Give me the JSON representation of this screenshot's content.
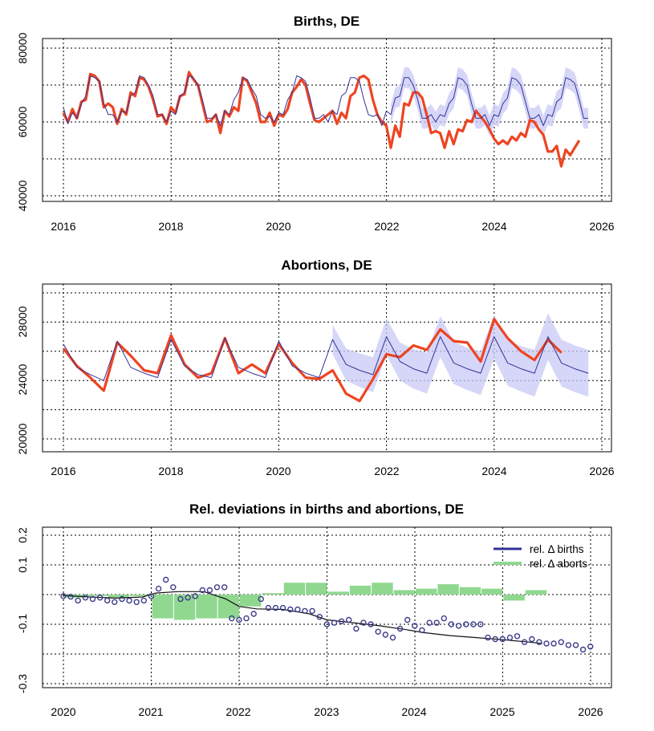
{
  "colors": {
    "observed": "#ee4422",
    "expected": "#333399",
    "band": "#c8c8f5",
    "bars": "#90d890",
    "points": "#3c3c8c",
    "trend": "#111111"
  },
  "chart_data": [
    {
      "type": "line",
      "title": "Births, DE",
      "xlim": [
        2016,
        2026
      ],
      "ylim": [
        40000,
        80000
      ],
      "x_ticks": [
        "2016",
        "2018",
        "2020",
        "2022",
        "2024",
        "2026"
      ],
      "y_ticks": [
        "40000",
        "60000",
        "80000"
      ],
      "grid": true,
      "series": [
        {
          "role": "observed",
          "x_start": 2016.0,
          "x_step": 0.0833,
          "values": [
            62500,
            60000,
            63500,
            61000,
            65500,
            66000,
            73000,
            72500,
            71000,
            64000,
            65000,
            64000,
            59500,
            63500,
            62000,
            68000,
            67000,
            72000,
            71500,
            69500,
            66000,
            61500,
            62000,
            59500,
            64000,
            62500,
            67000,
            67500,
            73500,
            71500,
            70000,
            65000,
            60000,
            60500,
            62000,
            57000,
            63000,
            61500,
            64000,
            63000,
            72000,
            71000,
            68000,
            65000,
            60000,
            60000,
            62500,
            59000,
            62000,
            61500,
            63500,
            68000,
            69500,
            71500,
            70000,
            65000,
            60500,
            60000,
            61000,
            62000,
            63000,
            59500,
            62500,
            61000,
            67000,
            68000,
            72000,
            72500,
            71500,
            66000,
            62000,
            60000,
            59000,
            53000,
            59000,
            56000,
            65000,
            64500,
            68000,
            68000,
            66500,
            62000,
            57000,
            57500,
            57000,
            53000,
            57500,
            54000,
            58000,
            57500,
            60500,
            60000,
            63000,
            61500,
            60000,
            58000,
            55500,
            54000,
            55000,
            54000,
            56000,
            55000,
            57000,
            56000,
            60500,
            60000,
            58000,
            56500,
            52000,
            52000,
            53500,
            48000,
            52500,
            51000,
            53000,
            55000
          ]
        },
        {
          "role": "expected",
          "x_start": 2016.0,
          "x_step": 0.0833,
          "values": [
            64000,
            59500,
            62500,
            61000,
            65000,
            67000,
            72500,
            72000,
            71000,
            65000,
            62000,
            62000,
            60000,
            63000,
            62500,
            67000,
            68000,
            72500,
            72000,
            70000,
            67000,
            62000,
            62000,
            60000,
            63000,
            62000,
            67000,
            68000,
            72500,
            72000,
            70000,
            66000,
            61000,
            61000,
            62000,
            59000,
            63000,
            62000,
            66000,
            68000,
            72000,
            71500,
            69000,
            67000,
            62000,
            61000,
            61500,
            60000,
            62500,
            62000,
            66000,
            68000,
            72500,
            72000,
            71000,
            66500,
            61000,
            61000,
            62000,
            60000,
            63000,
            62000,
            67000,
            68000,
            72000,
            72000,
            71000,
            66000,
            62000,
            61500,
            62000,
            59000,
            63000,
            62000,
            66500,
            67000,
            72000,
            72000,
            70000,
            66000,
            61000,
            61000,
            62000,
            60000,
            62000,
            61500,
            65000,
            66500,
            72000,
            71500,
            70000,
            65000,
            61000,
            61000,
            62000,
            59000,
            62000,
            61500,
            65000,
            66500,
            72000,
            71500,
            70000,
            65500,
            61000,
            61000,
            62000,
            59000,
            62000,
            61500,
            65500,
            66500,
            72000,
            71500,
            70500,
            66000,
            61000,
            61000
          ]
        }
      ],
      "band": {
        "x_start": 2022.0,
        "x_step": 0.0833,
        "halfwidth": 2800
      }
    },
    {
      "type": "line",
      "title": "Abortions, DE",
      "xlim": [
        2016,
        2026
      ],
      "ylim": [
        20000,
        30000
      ],
      "x_ticks": [
        "2016",
        "2018",
        "2020",
        "2022",
        "2024",
        "2026"
      ],
      "y_ticks": [
        "20000",
        "24000",
        "28000"
      ],
      "grid": true,
      "series": [
        {
          "role": "observed",
          "x": [
            2016.0,
            2016.25,
            2016.5,
            2016.75,
            2017.0,
            2017.25,
            2017.5,
            2017.75,
            2018.0,
            2018.25,
            2018.5,
            2018.75,
            2019.0,
            2019.25,
            2019.5,
            2019.75,
            2020.0,
            2020.25,
            2020.5,
            2020.75,
            2021.0,
            2021.25,
            2021.5,
            2021.75,
            2022.0,
            2022.25,
            2022.5,
            2022.75,
            2023.0,
            2023.25,
            2023.5,
            2023.75,
            2024.0,
            2024.25,
            2024.5,
            2024.75,
            2025.0,
            2025.25
          ],
          "values": [
            26200,
            25000,
            24200,
            23300,
            26600,
            25700,
            24700,
            24500,
            27100,
            25100,
            24200,
            24500,
            26900,
            24500,
            25100,
            24500,
            26500,
            25200,
            24200,
            24100,
            24700,
            23100,
            22600,
            24100,
            25800,
            25600,
            26400,
            26100,
            27500,
            26700,
            26600,
            25300,
            28200,
            26900,
            26000,
            25400,
            26800,
            25900
          ]
        },
        {
          "role": "expected",
          "x": [
            2016.0,
            2016.25,
            2016.5,
            2016.75,
            2017.0,
            2017.25,
            2017.5,
            2017.75,
            2018.0,
            2018.25,
            2018.5,
            2018.75,
            2019.0,
            2019.25,
            2019.5,
            2019.75,
            2020.0,
            2020.25,
            2020.5,
            2020.75,
            2021.0,
            2021.25,
            2021.5,
            2021.75,
            2022.0,
            2022.25,
            2022.5,
            2022.75,
            2023.0,
            2023.25,
            2023.5,
            2023.75,
            2024.0,
            2024.25,
            2024.5,
            2024.75,
            2025.0,
            2025.25,
            2025.5,
            2025.75
          ],
          "values": [
            26500,
            24900,
            24400,
            24000,
            26700,
            24900,
            24500,
            24200,
            26800,
            25000,
            24400,
            24200,
            26900,
            24900,
            24500,
            24200,
            26700,
            25000,
            24500,
            24200,
            26800,
            25100,
            24700,
            24400,
            27000,
            25300,
            24800,
            24500,
            27000,
            25200,
            24800,
            24500,
            27000,
            25200,
            24800,
            24500,
            27000,
            25200,
            24800,
            24500
          ]
        },
        {
          "role": "band",
          "x_start": 2021.0,
          "halfwidth": [
            1000,
            1100,
            1150,
            1200,
            1250,
            1300,
            1350,
            1400,
            1400,
            1450,
            1450,
            1500,
            1500,
            1550,
            1550,
            1600,
            1600,
            1600,
            1600
          ]
        }
      ]
    },
    {
      "type": "bar+scatter",
      "title": "Rel. deviations in births and abortions, DE",
      "xlim": [
        2020,
        2026
      ],
      "ylim": [
        -0.3,
        0.2
      ],
      "x_ticks": [
        "2020",
        "2021",
        "2022",
        "2023",
        "2024",
        "2025",
        "2026"
      ],
      "y_ticks": [
        "-0.3",
        "-0.1",
        "0.1",
        "0.2"
      ],
      "y_ticks_values": [
        -0.3,
        -0.1,
        0.1,
        0.2
      ],
      "grid": true,
      "legend": {
        "placement": "top-right",
        "entries": [
          "rel. Δ births",
          "rel. Δ aborts"
        ]
      },
      "abortions_rel": {
        "x": [
          2020.0,
          2020.25,
          2020.5,
          2020.75,
          2021.0,
          2021.25,
          2021.5,
          2021.75,
          2022.0,
          2022.25,
          2022.5,
          2022.75,
          2023.0,
          2023.25,
          2023.5,
          2023.75,
          2024.0,
          2024.25,
          2024.5,
          2024.75,
          2025.0,
          2025.25
        ],
        "values": [
          -0.01,
          -0.005,
          -0.01,
          -0.005,
          -0.08,
          -0.085,
          -0.08,
          -0.08,
          -0.04,
          0.005,
          0.04,
          0.04,
          0.01,
          0.03,
          0.04,
          0.015,
          0.02,
          0.035,
          0.025,
          0.02,
          -0.02,
          0.015
        ]
      },
      "births_rel": {
        "x_start": 2020.0,
        "x_step": 0.0833,
        "values": [
          -0.005,
          -0.007,
          -0.02,
          -0.01,
          -0.015,
          -0.01,
          -0.02,
          -0.025,
          -0.015,
          -0.02,
          -0.025,
          -0.02,
          -0.005,
          0.02,
          0.05,
          0.025,
          -0.015,
          -0.01,
          -0.005,
          0.015,
          0.015,
          0.025,
          0.025,
          -0.08,
          -0.085,
          -0.08,
          -0.065,
          -0.015,
          -0.045,
          -0.045,
          -0.045,
          -0.05,
          -0.05,
          -0.055,
          -0.055,
          -0.075,
          -0.1,
          -0.095,
          -0.09,
          -0.085,
          -0.115,
          -0.095,
          -0.1,
          -0.125,
          -0.135,
          -0.145,
          -0.115,
          -0.085,
          -0.105,
          -0.12,
          -0.095,
          -0.095,
          -0.08,
          -0.1,
          -0.105,
          -0.1,
          -0.1,
          -0.1,
          -0.145,
          -0.15,
          -0.15,
          -0.145,
          -0.14,
          -0.16,
          -0.15,
          -0.16,
          -0.165,
          -0.165,
          -0.16,
          -0.17,
          -0.17,
          -0.185,
          -0.175
        ]
      },
      "trend": {
        "x": [
          2020.0,
          2020.3,
          2020.6,
          2020.9,
          2021.05,
          2021.3,
          2021.6,
          2021.85,
          2022.0,
          2022.2,
          2022.5,
          2022.8,
          2023.0,
          2023.3,
          2023.6,
          2023.9,
          2024.1,
          2024.4,
          2024.7,
          2025.0,
          2025.3,
          2025.45
        ],
        "values": [
          -0.003,
          -0.008,
          -0.012,
          -0.008,
          0.005,
          0.01,
          0.01,
          -0.015,
          -0.04,
          -0.048,
          -0.05,
          -0.065,
          -0.085,
          -0.095,
          -0.105,
          -0.118,
          -0.128,
          -0.138,
          -0.145,
          -0.152,
          -0.16,
          -0.165
        ]
      }
    }
  ]
}
